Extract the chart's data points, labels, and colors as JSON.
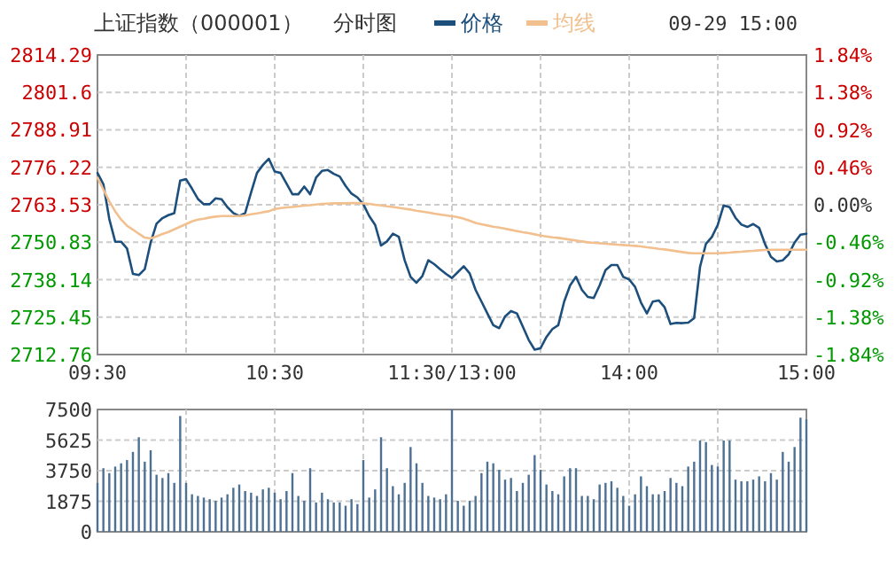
{
  "chart_data": [
    {
      "type": "line",
      "title": "上证指数（000001）",
      "subtitle": "分时图",
      "annotations": [
        "09-29 15:00"
      ],
      "legend": "top",
      "grid": true,
      "categories": [
        "09:30",
        null,
        null,
        null,
        null,
        null,
        null,
        null,
        null,
        null,
        null,
        null,
        null,
        null,
        null,
        null,
        null,
        null,
        null,
        null,
        null,
        null,
        null,
        null,
        null,
        null,
        null,
        null,
        null,
        null,
        "10:30",
        null,
        null,
        null,
        null,
        null,
        null,
        null,
        null,
        null,
        null,
        null,
        null,
        null,
        null,
        null,
        null,
        null,
        null,
        null,
        null,
        null,
        null,
        null,
        null,
        null,
        null,
        null,
        null,
        null,
        "11:30/13:00",
        null,
        null,
        null,
        null,
        null,
        null,
        null,
        null,
        null,
        null,
        null,
        null,
        null,
        null,
        null,
        null,
        null,
        null,
        null,
        null,
        null,
        null,
        null,
        null,
        null,
        null,
        null,
        null,
        null,
        "14:00",
        null,
        null,
        null,
        null,
        null,
        null,
        null,
        null,
        null,
        null,
        null,
        null,
        null,
        null,
        null,
        null,
        null,
        null,
        null,
        null,
        null,
        null,
        null,
        null,
        null,
        null,
        null,
        null,
        null,
        "15:00"
      ],
      "ylim": [
        2712.76,
        2814.29
      ],
      "yticks": [
        2712.76,
        2725.45,
        2738.14,
        2750.83,
        2763.53,
        2776.22,
        2788.91,
        2801.6,
        2814.29
      ],
      "y2lim": [
        -1.84,
        1.84
      ],
      "y2ticks": [
        {
          "value": -1.84,
          "label": "-1.84%"
        },
        {
          "value": -1.38,
          "label": "-1.38%"
        },
        {
          "value": -0.92,
          "label": "-0.92%"
        },
        {
          "value": -0.46,
          "label": "-0.46%"
        },
        {
          "value": 0,
          "label": "0.00%"
        },
        {
          "value": 0.46,
          "label": "0.46%"
        },
        {
          "value": 0.92,
          "label": "0.92%"
        },
        {
          "value": 1.38,
          "label": "1.38%"
        },
        {
          "value": 1.84,
          "label": "1.84%"
        }
      ],
      "series": [
        {
          "name": "价格",
          "color": "#1d4f7c",
          "values": [
            2774.3,
            2770.5,
            2758.7,
            2751,
            2751,
            2748.7,
            2740.1,
            2739.7,
            2741.7,
            2750.7,
            2757.1,
            2759,
            2760,
            2760.7,
            2771.7,
            2772.2,
            2769,
            2765.5,
            2763.7,
            2763.7,
            2765.7,
            2765.4,
            2762.7,
            2760.7,
            2759.7,
            2760.7,
            2767.7,
            2774.3,
            2777,
            2779.1,
            2774.8,
            2774.3,
            2770.7,
            2767.1,
            2767.1,
            2769.7,
            2767.1,
            2772.7,
            2775,
            2775.3,
            2774,
            2773.1,
            2769.9,
            2767.3,
            2766,
            2763.7,
            2759.7,
            2756.7,
            2749.7,
            2751.1,
            2753.7,
            2752.7,
            2744.7,
            2739.1,
            2737.1,
            2739.4,
            2744.7,
            2743.4,
            2741.7,
            2740.1,
            2738.7,
            2740.7,
            2742.7,
            2740.3,
            2734.7,
            2730.7,
            2726.7,
            2722.7,
            2721.7,
            2725.7,
            2727.5,
            2726.7,
            2722.2,
            2717.7,
            2714.4,
            2714.9,
            2718.7,
            2721.4,
            2722.7,
            2730.7,
            2736.2,
            2739.1,
            2734.7,
            2732.3,
            2731.9,
            2736.2,
            2741.4,
            2743.1,
            2743.1,
            2739.1,
            2738.2,
            2735.7,
            2730.4,
            2726.7,
            2730.7,
            2731.1,
            2728.8,
            2723.1,
            2723.5,
            2723.4,
            2723.6,
            2725.1,
            2742.5,
            2750.3,
            2752.6,
            2756.7,
            2763.3,
            2762.7,
            2759.1,
            2756.8,
            2756,
            2757,
            2755.7,
            2750.2,
            2745.9,
            2744.3,
            2744.7,
            2746.7,
            2750.7,
            2753.4,
            2753.7
          ]
        },
        {
          "name": "均线",
          "color": "#f2c08e",
          "values": [
            2772.7,
            2768.7,
            2764.7,
            2761.3,
            2758.5,
            2756.4,
            2755.1,
            2753.7,
            2752.4,
            2752.1,
            2752.8,
            2753.6,
            2754.3,
            2755.2,
            2756.1,
            2757,
            2757.9,
            2758.5,
            2758.8,
            2759.2,
            2759.5,
            2759.7,
            2759.7,
            2759.7,
            2759.7,
            2759.9,
            2760.3,
            2760.6,
            2761,
            2761.3,
            2762.1,
            2762.4,
            2762.6,
            2762.8,
            2763,
            2763.2,
            2763.4,
            2763.6,
            2763.8,
            2763.9,
            2764,
            2764,
            2764,
            2764.1,
            2764.1,
            2764,
            2763.8,
            2763.5,
            2763.3,
            2763,
            2762.8,
            2762.5,
            2762.2,
            2761.9,
            2761.5,
            2761.2,
            2760.9,
            2760.5,
            2760.2,
            2759.9,
            2759.6,
            2759.3,
            2758.8,
            2758.1,
            2757.4,
            2756.9,
            2756.5,
            2756.1,
            2755.8,
            2755.4,
            2755,
            2754.6,
            2754.2,
            2753.9,
            2753.5,
            2753.1,
            2752.8,
            2752.5,
            2752.3,
            2752,
            2751.7,
            2751.4,
            2751.1,
            2750.8,
            2750.6,
            2750.5,
            2750.3,
            2750.2,
            2750,
            2749.9,
            2749.7,
            2749.6,
            2749.4,
            2749.1,
            2748.9,
            2748.6,
            2748.4,
            2748.1,
            2747.8,
            2747.5,
            2747.2,
            2747.1,
            2747.1,
            2747.1,
            2747.1,
            2747.1,
            2747.2,
            2747.3,
            2747.5,
            2747.6,
            2747.8,
            2747.9,
            2748.1,
            2748.2,
            2748.3,
            2748.3,
            2748.3,
            2748.3,
            2748.3,
            2748.3,
            2748.3
          ]
        }
      ]
    },
    {
      "type": "bar",
      "color": "#4d7192",
      "grid": true,
      "categories": [
        null,
        null,
        null,
        null,
        null,
        null,
        null,
        null,
        null,
        null,
        null,
        null,
        null,
        null,
        null,
        null,
        null,
        null,
        null,
        null,
        null,
        null,
        null,
        null,
        null,
        null,
        null,
        null,
        null,
        null,
        null,
        null,
        null,
        null,
        null,
        null,
        null,
        null,
        null,
        null,
        null,
        null,
        null,
        null,
        null,
        null,
        null,
        null,
        null,
        null,
        null,
        null,
        null,
        null,
        null,
        null,
        null,
        null,
        null,
        null,
        null,
        null,
        null,
        null,
        null,
        null,
        null,
        null,
        null,
        null,
        null,
        null,
        null,
        null,
        null,
        null,
        null,
        null,
        null,
        null,
        null,
        null,
        null,
        null,
        null,
        null,
        null,
        null,
        null,
        null,
        null,
        null,
        null,
        null,
        null,
        null,
        null,
        null,
        null,
        null,
        null,
        null,
        null,
        null,
        null,
        null,
        null,
        null,
        null,
        null,
        null,
        null,
        null,
        null,
        null,
        null,
        null,
        null,
        null,
        null,
        null
      ],
      "ylim": [
        0,
        7500
      ],
      "yticks": [
        0,
        1875,
        3750,
        5625,
        7500
      ],
      "values": [
        3000,
        3900,
        3600,
        4000,
        4200,
        4400,
        4900,
        5800,
        4300,
        5000,
        3500,
        3300,
        3600,
        3000,
        7100,
        3000,
        2300,
        2200,
        2100,
        2000,
        1900,
        2100,
        2300,
        2700,
        2900,
        2500,
        2400,
        2200,
        2600,
        2700,
        2400,
        2000,
        2500,
        3600,
        2200,
        1900,
        3900,
        1800,
        2400,
        2000,
        1800,
        1800,
        1600,
        2000,
        1700,
        4400,
        2100,
        2600,
        5800,
        3900,
        2800,
        2300,
        3000,
        5200,
        4200,
        3000,
        2200,
        2100,
        2000,
        2300,
        7500,
        1900,
        1600,
        1900,
        2200,
        3600,
        4300,
        4200,
        3800,
        3200,
        3300,
        2500,
        3000,
        3500,
        4700,
        3800,
        2900,
        2500,
        2300,
        3400,
        3900,
        3900,
        2200,
        2200,
        2000,
        2900,
        3000,
        3100,
        2700,
        2200,
        1600,
        2300,
        3400,
        2800,
        2300,
        2300,
        2500,
        3300,
        3000,
        2800,
        4000,
        4300,
        5600,
        5500,
        4100,
        4000,
        5600,
        5600,
        3200,
        3100,
        3100,
        3200,
        3400,
        3100,
        3600,
        3200,
        4900,
        4300,
        5200,
        7000,
        6900
      ]
    }
  ]
}
